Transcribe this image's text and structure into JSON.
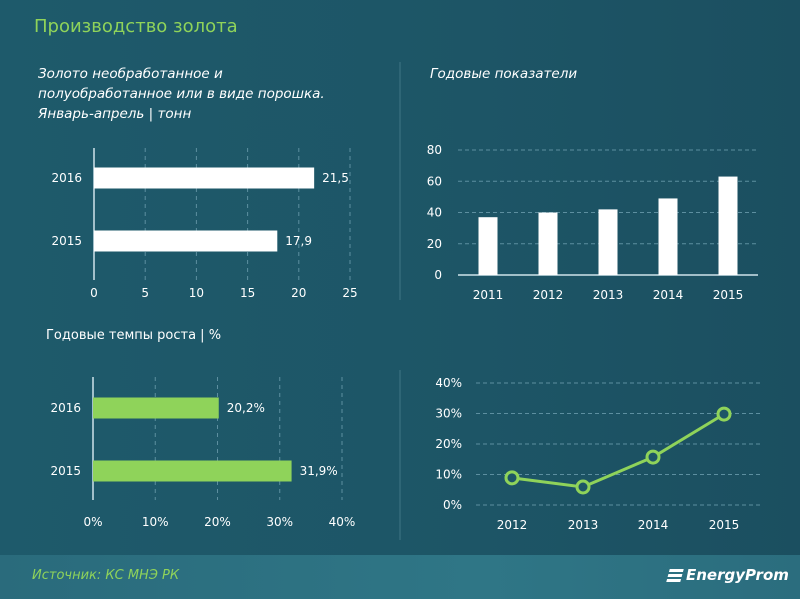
{
  "header": {
    "title": "Производство золота"
  },
  "footer": {
    "source": "Источник: КС МНЭ РК",
    "logo_text": "EnergyProm"
  },
  "colors": {
    "background": "#1d5566",
    "accent_green": "#8fd35a",
    "bar_white": "#ffffff",
    "bar_green": "#8fd35a"
  },
  "chart_data": [
    {
      "type": "bar",
      "orientation": "horizontal",
      "title": "Золото необработанное и\nполуобработанное или в виде порошка.\nЯнварь-апрель | тонн",
      "categories": [
        "2016",
        "2015"
      ],
      "values": [
        21.5,
        17.9
      ],
      "value_labels": [
        "21,5",
        "17,9"
      ],
      "xlim": [
        0,
        25
      ],
      "xticks": [
        "0",
        "5",
        "10",
        "15",
        "20",
        "25"
      ],
      "grid": true
    },
    {
      "type": "bar",
      "title": "Годовые показатели",
      "categories": [
        "2011",
        "2012",
        "2013",
        "2014",
        "2015"
      ],
      "values": [
        37,
        40,
        42,
        49,
        63
      ],
      "ylim": [
        0,
        80
      ],
      "yticks": [
        "0",
        "20",
        "40",
        "60",
        "80"
      ],
      "grid": true
    },
    {
      "type": "bar",
      "orientation": "horizontal",
      "title": "Годовые темпы роста | %",
      "categories": [
        "2016",
        "2015"
      ],
      "values": [
        20.2,
        31.9
      ],
      "value_labels": [
        "20,2%",
        "31,9%"
      ],
      "xlim": [
        0,
        40
      ],
      "xticks": [
        "0%",
        "10%",
        "20%",
        "30%",
        "40%"
      ],
      "grid": true
    },
    {
      "type": "line",
      "categories": [
        "2012",
        "2013",
        "2014",
        "2015"
      ],
      "values": [
        8.9,
        5.9,
        15.7,
        29.8
      ],
      "ylim": [
        0,
        40
      ],
      "yticks": [
        "0%",
        "10%",
        "20%",
        "30%",
        "40%"
      ],
      "grid": true,
      "markers": "hollow-circle"
    }
  ]
}
